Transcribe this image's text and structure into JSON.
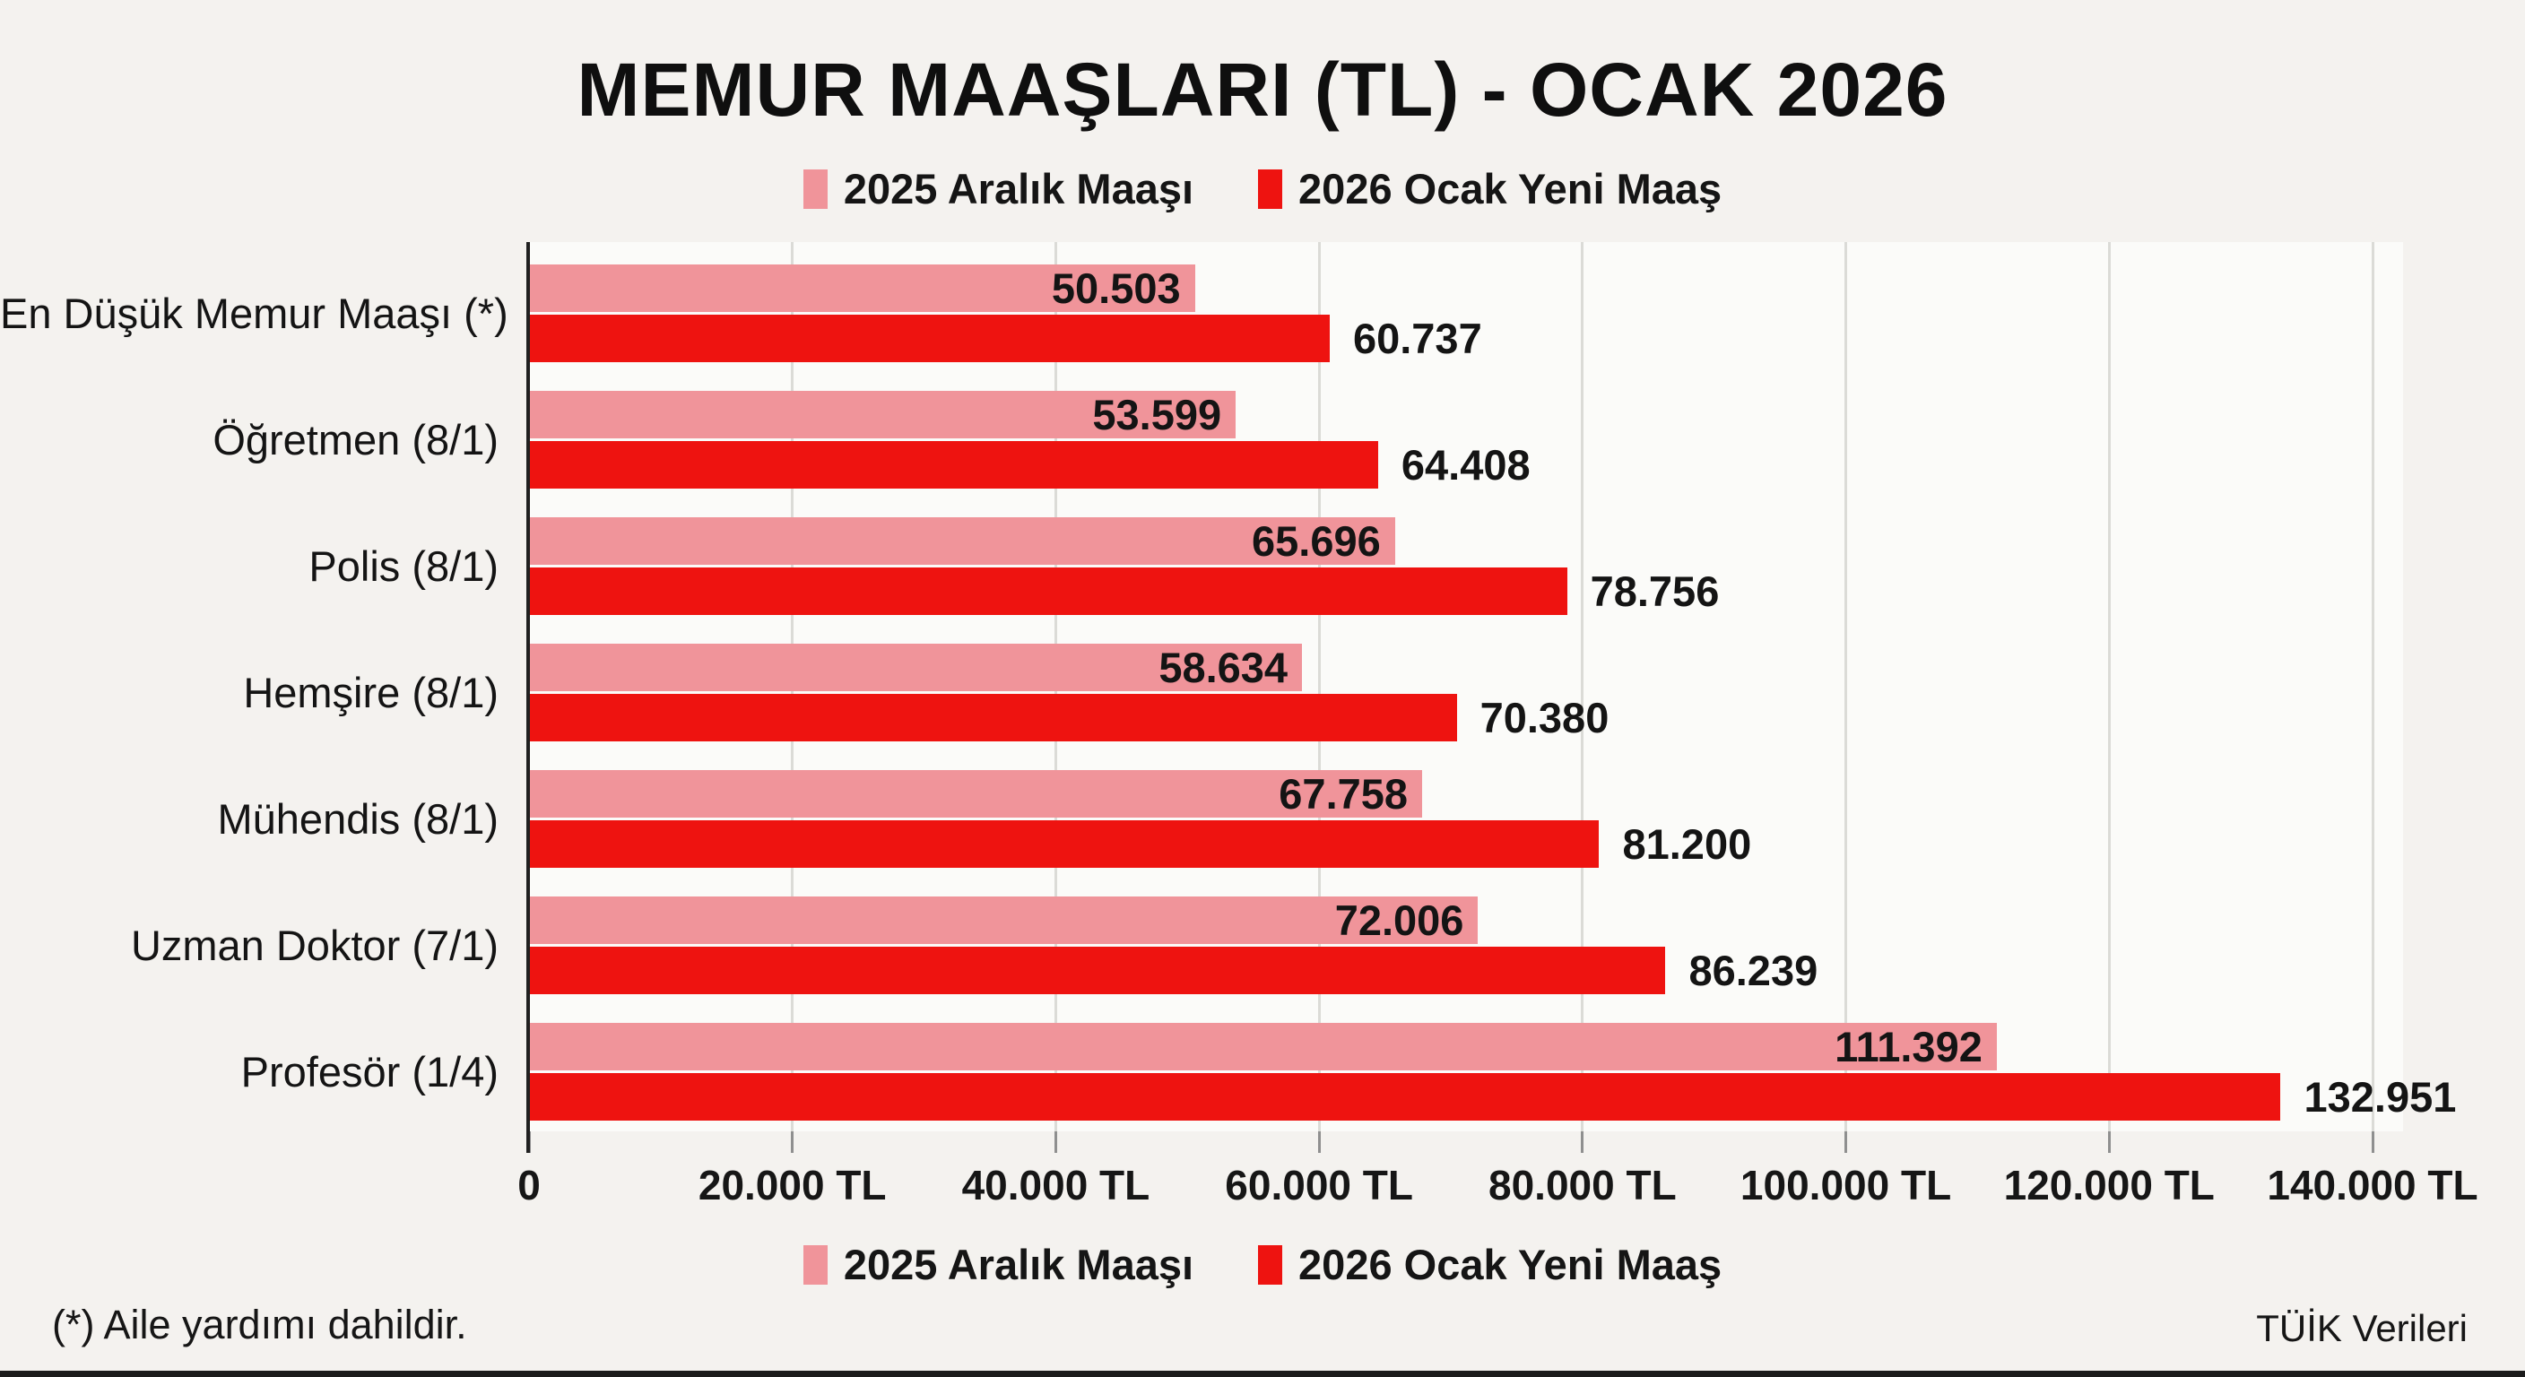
{
  "title": "MEMUR MAAŞLARI (TL) - OCAK 2026",
  "legend": {
    "series1": "2025 Aralık Maaşı",
    "series2": "2026 Ocak Yeni Maaş"
  },
  "footnote": "(*) Aile yardımı dahildir.",
  "source": "TÜİK Verileri",
  "colors": {
    "series1": "#F0949A",
    "series2": "#EE1310",
    "background": "#F4F2EF",
    "plot_background": "#FBFBF9",
    "grid": "#DBDBD7",
    "axis": "#202020",
    "text": "#141414"
  },
  "chart_data": {
    "type": "bar",
    "orientation": "horizontal",
    "title": "MEMUR MAAŞLARI (TL) - OCAK 2026",
    "xlabel": "",
    "ylabel": "",
    "grid": true,
    "legend_position": "top and bottom",
    "categories": [
      "En Düşük Memur Maaşı (*)",
      "Öğretmen (8/1)",
      "Polis (8/1)",
      "Hemşire (8/1)",
      "Mühendis (8/1)",
      "Uzman Doktor (7/1)",
      "Profesör (1/4)"
    ],
    "series": [
      {
        "name": "2025 Aralık Maaşı",
        "color": "#F0949A",
        "values": [
          50503,
          53599,
          65696,
          58634,
          67758,
          72006,
          111392
        ],
        "labels": [
          "50.503",
          "53.599",
          "65.696",
          "58.634",
          "67.758",
          "72.006",
          "111.392"
        ]
      },
      {
        "name": "2026 Ocak Yeni Maaş",
        "color": "#EE1310",
        "values": [
          60737,
          64408,
          78756,
          70380,
          81200,
          86239,
          132951
        ],
        "labels": [
          "60.737",
          "64.408",
          "78.756",
          "70.380",
          "81.200",
          "86.239",
          "132.951"
        ]
      }
    ],
    "x_axis": {
      "min": 0,
      "max": 140000,
      "step": 20000,
      "tick_labels": [
        "0",
        "20.000 TL",
        "40.000 TL",
        "60.000 TL",
        "80.000 TL",
        "100.000 TL",
        "120.000 TL",
        "140.000 TL"
      ]
    }
  }
}
